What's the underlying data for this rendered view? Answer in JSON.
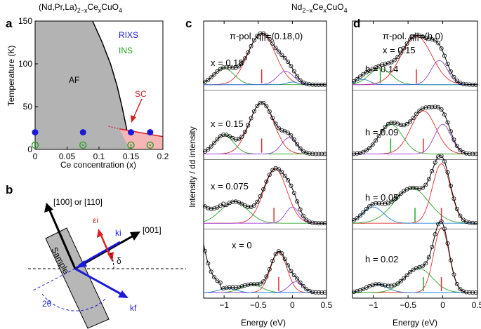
{
  "panels": {
    "a": "a",
    "b": "b",
    "c": "c",
    "d": "d"
  },
  "chart_data": [
    {
      "type": "scatter",
      "panel": "a",
      "title": "(Nd,Pr,La)2−xCexCuO4",
      "xlabel": "Ce concentration (x)",
      "ylabel": "Temperature (K)",
      "xlim": [
        0,
        0.2
      ],
      "ylim": [
        0,
        150
      ],
      "xticks": [
        "0",
        "0.05",
        "0.1",
        "0.15",
        "0.2"
      ],
      "yticks": [
        "0",
        "50",
        "100",
        "150"
      ],
      "regions": {
        "af_label": "AF",
        "sc_label": "SC",
        "af_color": "#b3b3b3",
        "sc_color": "#f6b6b6"
      },
      "af_boundary": [
        [
          0.09,
          150
        ],
        [
          0.105,
          125
        ],
        [
          0.118,
          100
        ],
        [
          0.128,
          75
        ],
        [
          0.136,
          50
        ],
        [
          0.143,
          25
        ],
        [
          0.148,
          0
        ]
      ],
      "sc_dome": [
        [
          0.132,
          24
        ],
        [
          0.2,
          15
        ],
        [
          0.2,
          0
        ],
        [
          0.148,
          0
        ]
      ],
      "series": [
        {
          "name": "RIXS",
          "color": "#1a1adb",
          "marker": "filled-circle",
          "x": [
            0,
            0.075,
            0.15,
            0.18
          ],
          "y": [
            20,
            20,
            20,
            20
          ]
        },
        {
          "name": "INS",
          "color": "#1a9e1a",
          "marker": "open-circle-dot",
          "x": [
            0,
            0.075,
            0.15,
            0.18
          ],
          "y": [
            5,
            5,
            5,
            5
          ]
        }
      ]
    },
    {
      "type": "diagram",
      "panel": "b",
      "labels": {
        "dir_top": "[100] or [110]",
        "dir_right": "[001]",
        "sample": "Sample",
        "epsilon": "εi",
        "ki": "ki",
        "kf": "kf",
        "delta": "δ",
        "two_theta": "2θ"
      }
    },
    {
      "type": "line",
      "panel": "c",
      "title": "Nd2−xCexCuO4",
      "subtitle": "π-pol. q||=(0.18,0)",
      "xlabel": "Energy (eV)",
      "ylabel": "Intensity / dd intensity",
      "xlim": [
        -1.3,
        0.5
      ],
      "xticks": [
        "−1",
        "−0.5",
        "0",
        "0.5"
      ],
      "spectra": [
        {
          "label": "x = 0.18",
          "red_line": -0.45
        },
        {
          "label": "x = 0.15",
          "red_line": -0.45
        },
        {
          "label": "x = 0.075",
          "red_line": -0.27
        },
        {
          "label": "x = 0",
          "red_line": -0.2
        }
      ]
    },
    {
      "type": "line",
      "panel": "d",
      "subtitle": "π-pol. q||=(h,0)",
      "series_label": "x = 0.15",
      "xlabel": "Energy (eV)",
      "xlim": [
        -1.3,
        0.5
      ],
      "xticks": [
        "−1",
        "−0.5",
        "0",
        "0.5"
      ],
      "spectra": [
        {
          "label": "h = 0.14",
          "red_line": -0.38
        },
        {
          "label": "h = 0.09",
          "red_line": -0.28
        },
        {
          "label": "h = 0.05",
          "red_line": -0.02
        },
        {
          "label": "h = 0.02",
          "red_line": -0.02
        }
      ]
    }
  ],
  "colors": {
    "data_line": "#000000",
    "fit_red": "#e03030",
    "fit_green": "#2aa52a",
    "fit_purple": "#9a3fd0",
    "fit_blue": "#2080d0",
    "arrow_blue": "#1a1adb",
    "arrow_red": "#e02020"
  }
}
